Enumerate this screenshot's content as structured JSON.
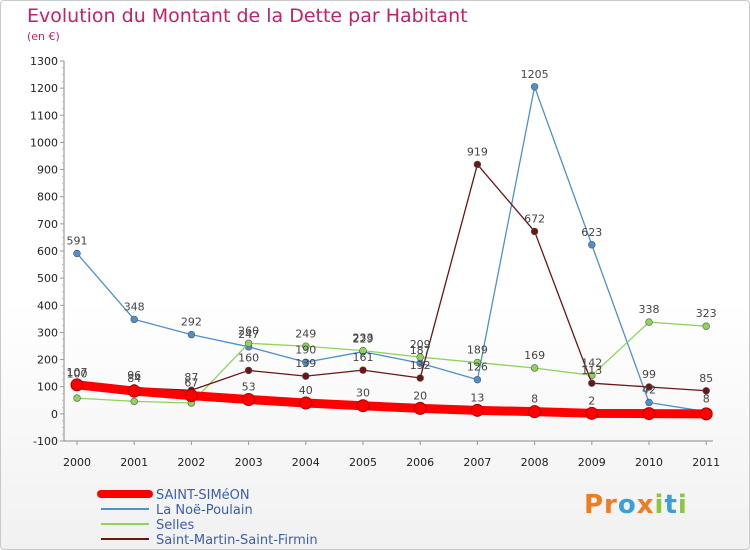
{
  "header": {
    "title": "Evolution du Montant de la Dette par Habitant",
    "unit": "(en €)"
  },
  "brand": {
    "text": "Proxiti"
  },
  "chart_data": {
    "type": "line",
    "title": "Evolution du Montant de la Dette par Habitant",
    "subtitle": "(en €)",
    "xlabel": "",
    "ylabel": "",
    "x": [
      2000,
      2001,
      2002,
      2003,
      2004,
      2005,
      2006,
      2007,
      2008,
      2009,
      2010,
      2011
    ],
    "y_ticks": [
      -100,
      0,
      100,
      200,
      300,
      400,
      500,
      600,
      700,
      800,
      900,
      1000,
      1100,
      1200,
      1300
    ],
    "ylim": [
      -100,
      1300
    ],
    "grid": false,
    "legend_position": "bottom-left",
    "series": [
      {
        "name": "SAINT-SIMéON",
        "color": "#ff0000",
        "values": [
          107,
          84,
          67,
          53,
          40,
          30,
          20,
          13,
          8,
          2,
          1,
          0
        ],
        "labels": [
          "107",
          "84",
          "67",
          "53",
          "40",
          "30",
          "20",
          "13",
          "8",
          "2",
          "",
          ""
        ]
      },
      {
        "name": "La Noë-Poulain",
        "color": "#4d90cf",
        "values": [
          591,
          348,
          292,
          247,
          190,
          229,
          187,
          126,
          1205,
          623,
          42,
          8
        ],
        "labels": [
          "591",
          "348",
          "292",
          "247",
          "190",
          "229",
          "187",
          "126",
          "1205",
          "623",
          "42",
          "8"
        ]
      },
      {
        "name": "Selles",
        "color": "#8fd45a",
        "values": [
          58,
          46,
          40,
          260,
          249,
          233,
          209,
          189,
          169,
          142,
          338,
          323
        ],
        "labels": [
          "",
          "",
          "",
          "260",
          "249",
          "233",
          "209",
          "189",
          "169",
          "142",
          "338",
          "323"
        ]
      },
      {
        "name": "Saint-Martin-Saint-Firmin",
        "color": "#6b1515",
        "values": [
          100,
          96,
          87,
          160,
          139,
          161,
          132,
          919,
          672,
          113,
          99,
          85
        ],
        "labels": [
          "100",
          "96",
          "87",
          "160",
          "139",
          "161",
          "132",
          "919",
          "672",
          "113",
          "99",
          "85"
        ]
      }
    ]
  }
}
